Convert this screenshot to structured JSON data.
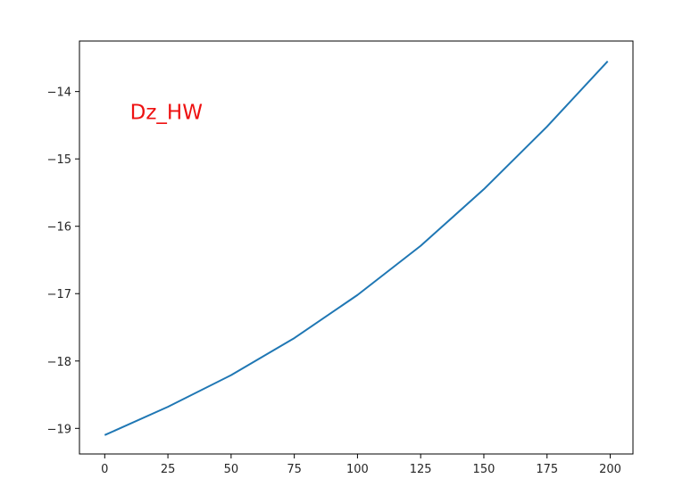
{
  "chart_data": {
    "type": "line",
    "title": "",
    "xlabel": "",
    "ylabel": "",
    "xlim": [
      -10,
      209
    ],
    "ylim": [
      -19.38,
      -13.25
    ],
    "x_ticks": [
      0,
      25,
      50,
      75,
      100,
      125,
      150,
      175,
      200
    ],
    "x_tick_labels": [
      "0",
      "25",
      "50",
      "75",
      "100",
      "125",
      "150",
      "175",
      "200"
    ],
    "y_ticks": [
      -19,
      -18,
      -17,
      -16,
      -15,
      -14
    ],
    "y_tick_labels": [
      "−19",
      "−18",
      "−17",
      "−16",
      "−15",
      "−14"
    ],
    "grid": false,
    "annotation": {
      "text": "Dz_HW",
      "color": "#ee1111",
      "x": 10,
      "y": -14.3
    },
    "series": [
      {
        "color": "#1f77b4",
        "x": [
          0,
          25,
          50,
          75,
          100,
          125,
          150,
          175,
          199
        ],
        "y": [
          -19.1,
          -18.68,
          -18.21,
          -17.66,
          -17.02,
          -16.29,
          -15.45,
          -14.52,
          -13.55
        ]
      }
    ]
  }
}
